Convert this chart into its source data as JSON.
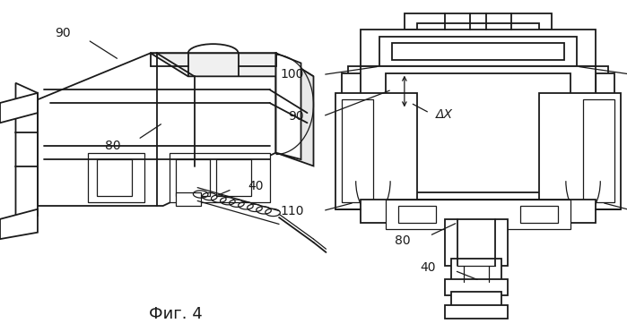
{
  "caption": "Фиг. 4",
  "caption_fontsize": 13,
  "bg_color": "#ffffff",
  "line_color": "#1a1a1a",
  "figsize": [
    6.99,
    3.71
  ],
  "dpi": 100
}
